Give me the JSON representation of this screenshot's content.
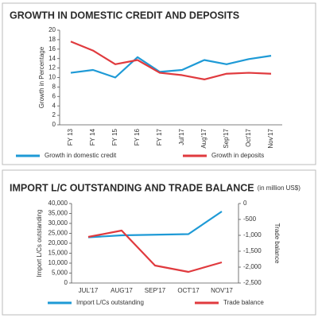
{
  "chart_data": [
    {
      "type": "line",
      "title": "GROWTH IN DOMESTIC CREDIT AND DEPOSITS",
      "y_label": "Growth in Percentage",
      "categories": [
        "FY 13",
        "FY 14",
        "FY 15",
        "FY 16",
        "FY 17",
        "Jul'17",
        "Aug'17",
        "Sep'17",
        "Oct'17",
        "Nov'17"
      ],
      "series": [
        {
          "name": "Growth in domestic credit",
          "color": "#1e9ad6",
          "values": [
            11,
            11.6,
            10,
            14.3,
            11.2,
            11.6,
            13.7,
            12.8,
            13.9,
            14.6
          ]
        },
        {
          "name": "Growth in deposits",
          "color": "#e03a3e",
          "values": [
            17.6,
            15.7,
            12.8,
            13.7,
            11,
            10.5,
            9.6,
            10.8,
            11,
            10.8
          ]
        }
      ],
      "ylim": [
        0,
        20
      ],
      "yticks": [
        0,
        2,
        4,
        6,
        8,
        10,
        12,
        14,
        16,
        18,
        20
      ]
    },
    {
      "type": "line",
      "title": "IMPORT L/C OUTSTANDING AND TRADE BALANCE",
      "subtitle": "(in million US$)",
      "y_label": "Import L/Cs outstanding",
      "y2_label": "Trade balance",
      "categories": [
        "JUL'17",
        "AUG'17",
        "SEP'17",
        "OCT'17",
        "NOV'17"
      ],
      "series": [
        {
          "name": "Import L/Cs outstanding",
          "color": "#1e9ad6",
          "values": [
            23000,
            24000,
            24300,
            24600,
            36000
          ]
        },
        {
          "name": "Trade balance",
          "color": "#e03a3e",
          "axis": "y2",
          "values": [
            -1050,
            -850,
            -1950,
            -2150,
            -1850
          ]
        }
      ],
      "ylim": [
        0,
        40000
      ],
      "yticks": [
        0,
        {
          "value": 5000,
          "label": "5,000"
        },
        {
          "value": 10000,
          "label": "10,000"
        },
        {
          "value": 15000,
          "label": "15,000"
        },
        {
          "value": 20000,
          "label": "20,000"
        },
        {
          "value": 25000,
          "label": "25,000"
        },
        {
          "value": 30000,
          "label": "30,000"
        },
        {
          "value": 35000,
          "label": "35,000"
        },
        {
          "value": 40000,
          "label": "40,000"
        }
      ],
      "y2lim": [
        -2500,
        0
      ],
      "y2ticks": [
        0,
        -500,
        {
          "value": -1000,
          "label": "-1,000"
        },
        {
          "value": -1500,
          "label": "-1,500"
        },
        {
          "value": -2000,
          "label": "-2,000"
        },
        {
          "value": -2500,
          "label": "-2,500"
        }
      ]
    }
  ]
}
